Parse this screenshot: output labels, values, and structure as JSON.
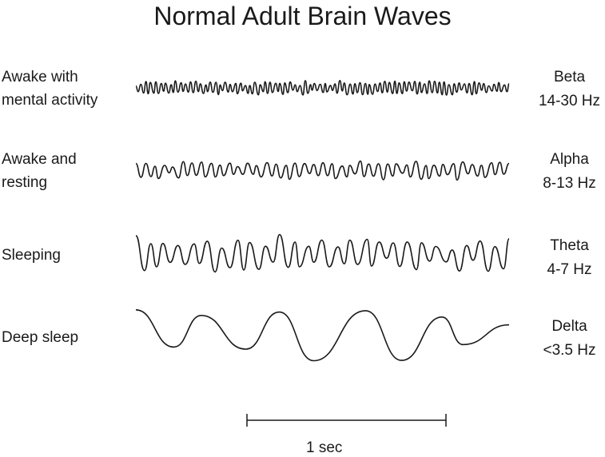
{
  "title": "Normal Adult Brain Waves",
  "rows": [
    {
      "state": [
        "Awake with",
        "mental activity"
      ],
      "wave": "Beta",
      "freq": "14-30 Hz"
    },
    {
      "state": [
        "Awake and",
        "resting"
      ],
      "wave": "Alpha",
      "freq": "8-13 Hz"
    },
    {
      "state": [
        "Sleeping"
      ],
      "wave": "Theta",
      "freq": "4-7 Hz"
    },
    {
      "state": [
        "Deep sleep"
      ],
      "wave": "Delta",
      "freq": "<3.5 Hz"
    }
  ],
  "scale": {
    "label": "1 sec"
  }
}
